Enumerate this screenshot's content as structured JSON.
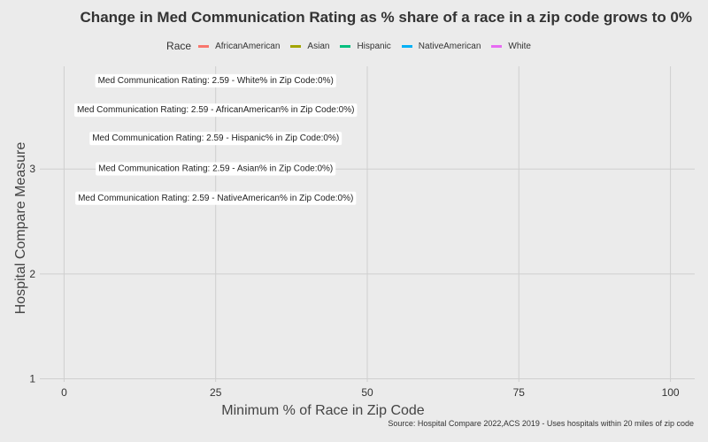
{
  "chart_data": {
    "type": "line",
    "title": "Change in Med Communication Rating as % share of a race in a zip code grows to 0%",
    "xlabel": "Minimum % of Race in Zip Code",
    "ylabel": "Hospital Compare Measure",
    "xlim": [
      -4,
      104
    ],
    "ylim": [
      0.97,
      3.98
    ],
    "x_ticks": [
      0,
      25,
      50,
      75,
      100
    ],
    "y_ticks": [
      1,
      2,
      3
    ],
    "grid": true,
    "legend": {
      "title": "Race",
      "placement": "top",
      "entries": [
        {
          "name": "AfricanAmerican",
          "color": "#f8766d"
        },
        {
          "name": "Asian",
          "color": "#a3a500"
        },
        {
          "name": "Hispanic",
          "color": "#00bf7d"
        },
        {
          "name": "NativeAmerican",
          "color": "#00b0f6"
        },
        {
          "name": "White",
          "color": "#e76bf3"
        }
      ]
    },
    "annotations": [
      {
        "text": "Med Communication Rating: 2.59 - White% in Zip Code:0%)",
        "x": 25,
        "y": 3.85
      },
      {
        "text": "Med Communication Rating: 2.59 - AfricanAmerican% in Zip Code:0%)",
        "x": 25,
        "y": 3.57
      },
      {
        "text": "Med Communication Rating: 2.59 - Hispanic% in Zip Code:0%)",
        "x": 25,
        "y": 3.3
      },
      {
        "text": "Med Communication Rating: 2.59 - Asian% in Zip Code:0%)",
        "x": 25,
        "y": 3.01
      },
      {
        "text": "Med Communication Rating: 2.59 - NativeAmerican% in Zip Code:0%)",
        "x": 25,
        "y": 2.73
      }
    ],
    "caption": "Source: Hospital Compare 2022,ACS 2019 - Uses hospitals within 20 miles of zip code"
  }
}
